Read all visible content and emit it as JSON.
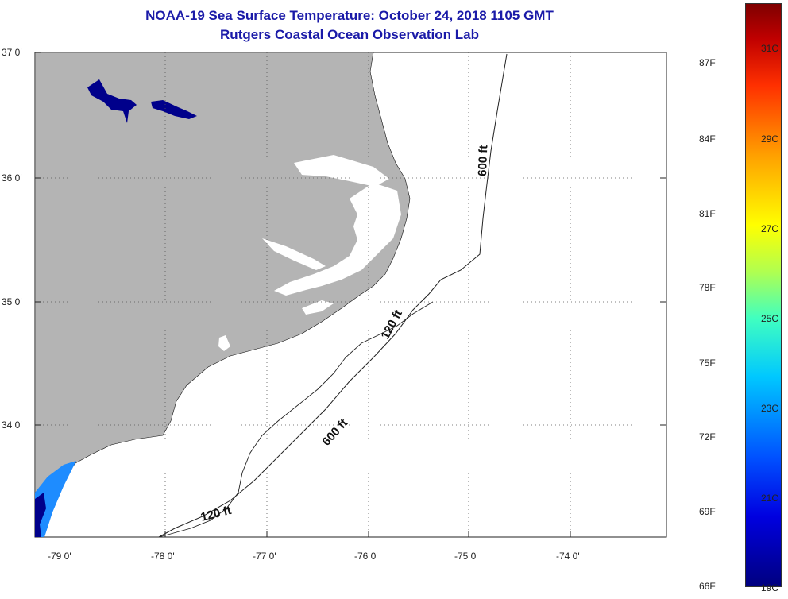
{
  "header": {
    "title": "NOAA-19 Sea Surface Temperature:  October 24, 2018 1105 GMT",
    "subtitle": "Rutgers Coastal Ocean Observation Lab"
  },
  "map": {
    "lat_labels": [
      "37 0'",
      "36 0'",
      "35 0'",
      "34 0'"
    ],
    "lon_labels": [
      "-79 0'",
      "-78 0'",
      "-77 0'",
      "-76 0'",
      "-75 0'",
      "-74 0'"
    ],
    "contours": [
      "600 ft",
      "120 ft",
      "600 ft",
      "120 ft"
    ],
    "colors": {
      "land": "#b4b4b4",
      "water_cold": "#00007f",
      "water_mid": "#1e8cff"
    }
  },
  "colorbar": {
    "fahrenheit": [
      "87F",
      "84F",
      "81F",
      "78F",
      "75F",
      "72F",
      "69F",
      "66F"
    ],
    "celsius": [
      "31C",
      "29C",
      "27C",
      "25C",
      "23C",
      "21C",
      "19C"
    ]
  }
}
